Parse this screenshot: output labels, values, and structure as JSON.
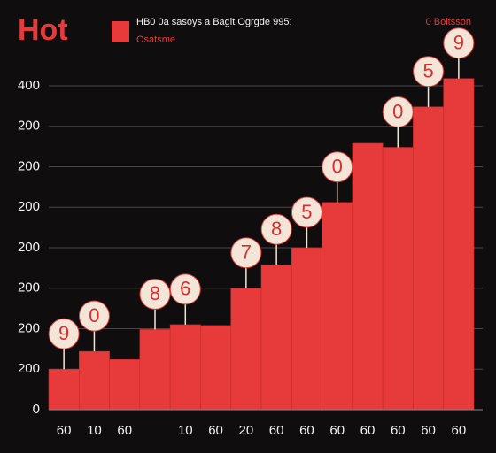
{
  "chart_data": {
    "type": "bar",
    "title": "Hot",
    "subtitle": "HB0 0a sasoys a Bagit Ogrgde 995:",
    "legend_label": "Osatsme",
    "note": "0 Boltsson",
    "color": "#e63b3a",
    "grid": true,
    "categories": [
      "60",
      "10",
      "60",
      null,
      "10",
      "60",
      "20",
      "60",
      "60",
      "60",
      "60",
      "60",
      "60",
      "60"
    ],
    "values": [
      50,
      72,
      62,
      99,
      105,
      104,
      150,
      179,
      200,
      256,
      329,
      324,
      374,
      409
    ],
    "annotations": [
      "9",
      "0",
      null,
      "8",
      "6",
      null,
      "7",
      "8",
      "5",
      "0",
      null,
      "0",
      "5",
      "9"
    ],
    "ylim": [
      0,
      400
    ],
    "yticks": [
      0,
      {
        "value": 50,
        "label": "200"
      },
      {
        "value": 100,
        "label": "200"
      },
      {
        "value": 150,
        "label": "200"
      },
      {
        "value": 200,
        "label": "200"
      },
      {
        "value": 250,
        "label": "200"
      },
      {
        "value": 300,
        "label": "200"
      },
      {
        "value": 350,
        "label": "200"
      },
      400
    ]
  }
}
